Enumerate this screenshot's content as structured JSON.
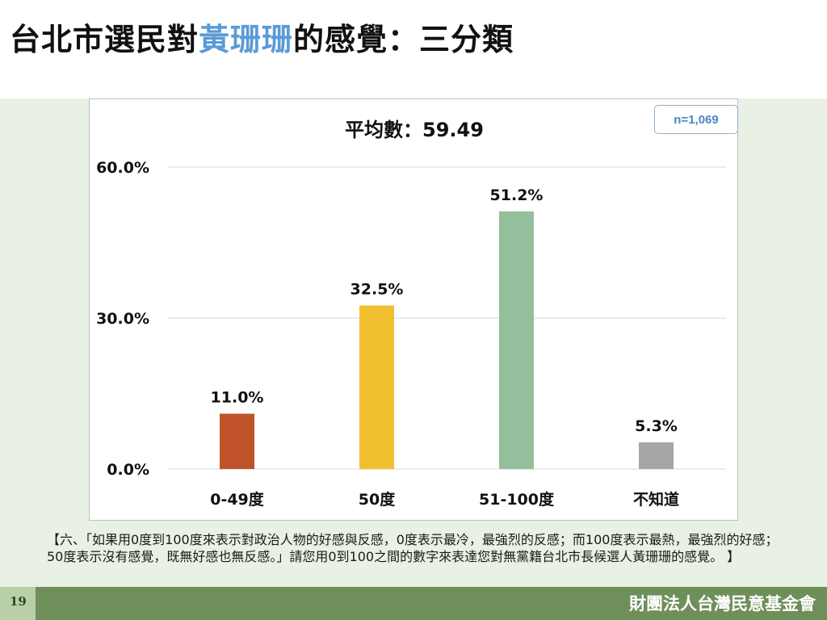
{
  "slide": {
    "title_pre": "台北市選民對",
    "title_highlight": "黃珊珊",
    "title_post": "的感覺：三分類",
    "sample_size": "n=1,069",
    "note": "【六、「如果用0度到100度來表示對政治人物的好感與反感，0度表示最冷，最強烈的反感；而100度表示最熱，最強烈的好感；50度表示沒有感覺，既無好感也無反感。」請您用0到100之間的數字來表達您對無黨籍台北市長候選人黃珊珊的感覺。 】",
    "page_number": "19",
    "organization": "財團法人台灣民意基金會",
    "highlight_color": "#5b9bd5"
  },
  "chart_data": {
    "type": "bar",
    "title": "平均數：59.49",
    "categories": [
      "0-49度",
      "50度",
      "51-100度",
      "不知道"
    ],
    "values": [
      11.0,
      32.5,
      51.2,
      5.3
    ],
    "value_labels": [
      "11.0%",
      "32.5%",
      "51.2%",
      "5.3%"
    ],
    "colors": [
      "#c0522a",
      "#f0c030",
      "#94bf9d",
      "#a6a6a6"
    ],
    "ylim": [
      0,
      60
    ],
    "yticks": [
      0,
      30,
      60
    ],
    "ytick_labels": [
      "0.0%",
      "30.0%",
      "60.0%"
    ],
    "grid": true,
    "legend": "none"
  }
}
